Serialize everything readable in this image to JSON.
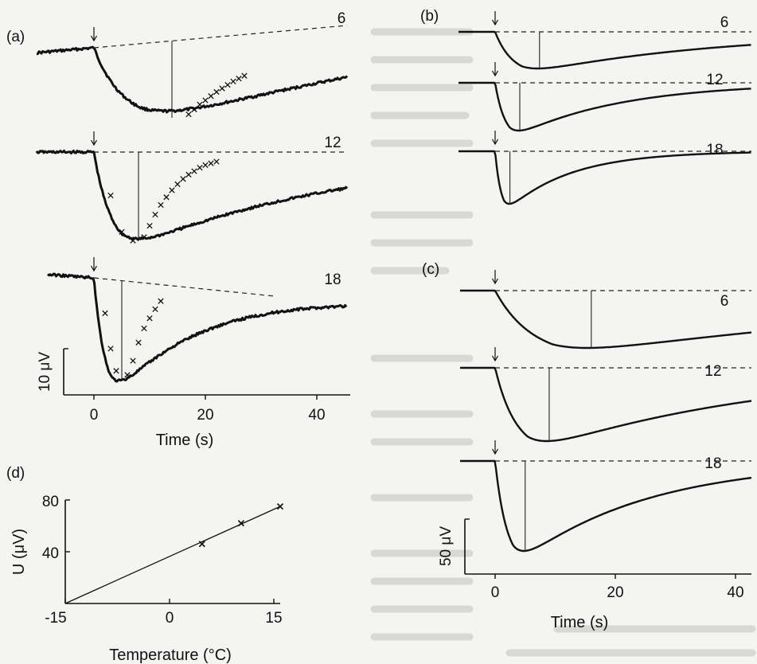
{
  "panels": {
    "a": {
      "label": "(a)"
    },
    "b": {
      "label": "(b)"
    },
    "c": {
      "label": "(c)"
    },
    "d": {
      "label": "(d)"
    }
  },
  "chart_data": [
    {
      "id": "a",
      "type": "line",
      "traces": [
        {
          "name": "6",
          "baseline_end_rise": 0.28,
          "peak": 1.0,
          "t_peak": 14,
          "recovery": 0.6,
          "tail_tau": 0.72,
          "cross": [
            [
              17,
              0.95
            ],
            [
              18,
              0.88
            ],
            [
              19,
              0.81
            ],
            [
              20,
              0.75
            ],
            [
              21,
              0.69
            ],
            [
              22,
              0.63
            ],
            [
              23,
              0.58
            ],
            [
              24,
              0.53
            ],
            [
              25,
              0.48
            ],
            [
              26,
              0.44
            ],
            [
              27,
              0.4
            ]
          ]
        },
        {
          "name": "12",
          "baseline_end_rise": 0.1,
          "peak": 1.05,
          "t_peak": 8,
          "recovery": 0.55,
          "tail_tau": 0.55,
          "cross": [
            [
              3,
              0.5
            ],
            [
              5,
              0.92
            ],
            [
              7,
              1.02
            ],
            [
              9,
              0.98
            ],
            [
              10,
              0.85
            ],
            [
              11,
              0.72
            ],
            [
              12,
              0.61
            ],
            [
              13,
              0.52
            ],
            [
              14,
              0.44
            ],
            [
              15,
              0.37
            ],
            [
              16,
              0.31
            ],
            [
              17,
              0.26
            ],
            [
              18,
              0.22
            ],
            [
              19,
              0.18
            ],
            [
              20,
              0.15
            ],
            [
              21,
              0.13
            ],
            [
              22,
              0.11
            ]
          ]
        },
        {
          "name": "18",
          "baseline_end_rise": -0.23,
          "peak": 1.0,
          "t_peak": 5,
          "recovery": 0.35,
          "tail_tau": 0.3,
          "cross": [
            [
              2,
              0.35
            ],
            [
              3,
              0.7
            ],
            [
              4,
              0.92
            ],
            [
              6,
              0.96
            ],
            [
              7,
              0.82
            ],
            [
              8,
              0.64
            ],
            [
              9,
              0.5
            ],
            [
              10,
              0.4
            ],
            [
              11,
              0.31
            ],
            [
              12,
              0.23
            ]
          ]
        }
      ],
      "x_ticks": [
        "0",
        "20",
        "40"
      ],
      "xlabel": "Time (s)",
      "scale_label": "10 μV",
      "xlim": [
        -5,
        42
      ]
    },
    {
      "id": "b",
      "type": "line",
      "traces": [
        {
          "name": "6",
          "peak": 1.0,
          "t_peak": 9
        },
        {
          "name": "12",
          "peak": 1.0,
          "t_peak": 5
        },
        {
          "name": "18",
          "peak": 1.0,
          "t_peak": 3
        }
      ]
    },
    {
      "id": "c",
      "type": "line",
      "traces": [
        {
          "name": "6",
          "peak": 1.0,
          "t_peak": 16
        },
        {
          "name": "12",
          "peak": 1.0,
          "t_peak": 9
        },
        {
          "name": "18",
          "peak": 1.0,
          "t_peak": 5
        }
      ],
      "x_ticks": [
        "0",
        "20",
        "40"
      ],
      "xlabel": "Time (s)",
      "scale_label": "50 μV",
      "xlim": [
        -5,
        45
      ]
    },
    {
      "id": "d",
      "type": "scatter",
      "x_ticks": [
        "-15",
        "0",
        "15"
      ],
      "y_ticks": [
        "40",
        "80"
      ],
      "xlabel": "Temperature (°C)",
      "ylabel": "U (μV)",
      "xlim": [
        -15,
        18
      ],
      "ylim": [
        0,
        80
      ],
      "points": [
        [
          6,
          46
        ],
        [
          12,
          62
        ],
        [
          18,
          75
        ]
      ],
      "fit_line": [
        [
          -15,
          0
        ],
        [
          18,
          75
        ]
      ]
    }
  ]
}
